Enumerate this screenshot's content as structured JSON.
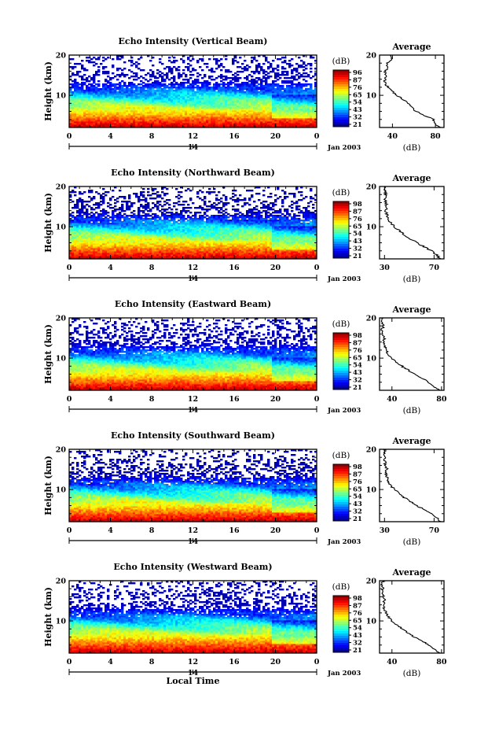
{
  "chart_data": [
    {
      "type": "heatmap",
      "title": "Echo Intensity (Vertical Beam)",
      "ylabel": "Height (km)",
      "xticks": [
        "0",
        "4",
        "8",
        "12",
        "16",
        "20",
        "0"
      ],
      "xlim": [
        0,
        24
      ],
      "yticks": [
        "10",
        "20"
      ],
      "ylim": [
        2,
        20
      ],
      "date_ticks": [
        "14"
      ],
      "date_label": "Jan 2003",
      "colorbar": {
        "unit": "(dB)",
        "ticks": [
          "96",
          "87",
          "76",
          "65",
          "54",
          "43",
          "32",
          "21"
        ]
      },
      "profile": {
        "title": "Average",
        "yticks": [
          "10",
          "20"
        ],
        "xticks": [
          "40",
          "80"
        ],
        "xlabel": "(dB)",
        "xlim": [
          28,
          88
        ],
        "height": [
          2,
          3,
          4,
          5,
          6,
          7,
          8,
          9,
          10,
          11,
          12,
          13,
          14,
          15,
          16,
          17,
          18,
          19,
          20
        ],
        "values": [
          85,
          79,
          78,
          70,
          62,
          58,
          55,
          50,
          44,
          40,
          36,
          33,
          33,
          34,
          33,
          36,
          34,
          40,
          38
        ]
      }
    },
    {
      "type": "heatmap",
      "title": "Echo Intensity (Northward Beam)",
      "ylabel": "Height (km)",
      "xticks": [
        "0",
        "4",
        "8",
        "12",
        "16",
        "20",
        "0"
      ],
      "xlim": [
        0,
        24
      ],
      "yticks": [
        "10",
        "20"
      ],
      "ylim": [
        2,
        20
      ],
      "date_ticks": [
        "14"
      ],
      "date_label": "Jan 2003",
      "colorbar": {
        "unit": "(dB)",
        "ticks": [
          "98",
          "87",
          "76",
          "65",
          "54",
          "43",
          "32",
          "21"
        ]
      },
      "profile": {
        "title": "Average",
        "yticks": [
          "10",
          "20"
        ],
        "xticks": [
          "30",
          "70"
        ],
        "xlabel": "(dB)",
        "xlim": [
          26,
          78
        ],
        "height": [
          2,
          3,
          4,
          5,
          6,
          7,
          8,
          9,
          10,
          11,
          12,
          13,
          14,
          15,
          16,
          17,
          18,
          19,
          20
        ],
        "values": [
          75,
          72,
          68,
          62,
          56,
          51,
          46,
          42,
          38,
          35,
          33,
          32,
          31,
          32,
          31,
          30,
          31,
          30,
          31
        ]
      }
    },
    {
      "type": "heatmap",
      "title": "Echo Intensity (Eastward Beam)",
      "ylabel": "Height (km)",
      "xticks": [
        "0",
        "4",
        "8",
        "12",
        "16",
        "20",
        "0"
      ],
      "xlim": [
        0,
        24
      ],
      "yticks": [
        "10",
        "20"
      ],
      "ylim": [
        2,
        20
      ],
      "date_ticks": [
        "14"
      ],
      "date_label": "Jan 2003",
      "colorbar": {
        "unit": "(dB)",
        "ticks": [
          "98",
          "87",
          "76",
          "65",
          "54",
          "43",
          "32",
          "21"
        ]
      },
      "profile": {
        "title": "Average",
        "yticks": [
          "10",
          "20"
        ],
        "xticks": [
          "40",
          "80"
        ],
        "xlabel": "(dB)",
        "xlim": [
          30,
          82
        ],
        "height": [
          2,
          3,
          4,
          5,
          6,
          7,
          8,
          9,
          10,
          11,
          12,
          13,
          14,
          15,
          16,
          17,
          18,
          19,
          20
        ],
        "values": [
          78,
          74,
          70,
          64,
          58,
          53,
          48,
          44,
          40,
          37,
          35,
          34,
          33,
          34,
          33,
          32,
          33,
          32,
          33
        ]
      }
    },
    {
      "type": "heatmap",
      "title": "Echo Intensity (Southward Beam)",
      "ylabel": "Height (km)",
      "xticks": [
        "0",
        "4",
        "8",
        "12",
        "16",
        "20",
        "0"
      ],
      "xlim": [
        0,
        24
      ],
      "yticks": [
        "10",
        "20"
      ],
      "ylim": [
        2,
        20
      ],
      "date_ticks": [
        "14"
      ],
      "date_label": "Jan 2003",
      "colorbar": {
        "unit": "(dB)",
        "ticks": [
          "98",
          "87",
          "76",
          "65",
          "54",
          "43",
          "32",
          "21"
        ]
      },
      "profile": {
        "title": "Average",
        "yticks": [
          "10",
          "20"
        ],
        "xticks": [
          "30",
          "70"
        ],
        "xlabel": "(dB)",
        "xlim": [
          26,
          78
        ],
        "height": [
          2,
          3,
          4,
          5,
          6,
          7,
          8,
          9,
          10,
          11,
          12,
          13,
          14,
          15,
          16,
          17,
          18,
          19,
          20
        ],
        "values": [
          75,
          72,
          68,
          62,
          56,
          51,
          46,
          42,
          38,
          35,
          33,
          32,
          31,
          32,
          31,
          30,
          31,
          30,
          31
        ]
      }
    },
    {
      "type": "heatmap",
      "title": "Echo Intensity (Westward Beam)",
      "ylabel": "Height (km)",
      "xticks": [
        "0",
        "4",
        "8",
        "12",
        "16",
        "20",
        "0"
      ],
      "xlim": [
        0,
        24
      ],
      "yticks": [
        "10",
        "20"
      ],
      "ylim": [
        2,
        20
      ],
      "date_ticks": [
        "14"
      ],
      "date_label": "Jan 2003",
      "xlabel": "Local Time",
      "colorbar": {
        "unit": "(dB)",
        "ticks": [
          "98",
          "87",
          "76",
          "65",
          "54",
          "43",
          "32",
          "21"
        ]
      },
      "profile": {
        "title": "Average",
        "yticks": [
          "10",
          "20"
        ],
        "xticks": [
          "40",
          "80"
        ],
        "xlabel": "(dB)",
        "xlim": [
          30,
          82
        ],
        "height": [
          2,
          3,
          4,
          5,
          6,
          7,
          8,
          9,
          10,
          11,
          12,
          13,
          14,
          15,
          16,
          17,
          18,
          19,
          20
        ],
        "values": [
          78,
          74,
          70,
          64,
          58,
          53,
          48,
          44,
          40,
          37,
          35,
          34,
          33,
          34,
          33,
          32,
          33,
          32,
          33
        ]
      }
    }
  ]
}
